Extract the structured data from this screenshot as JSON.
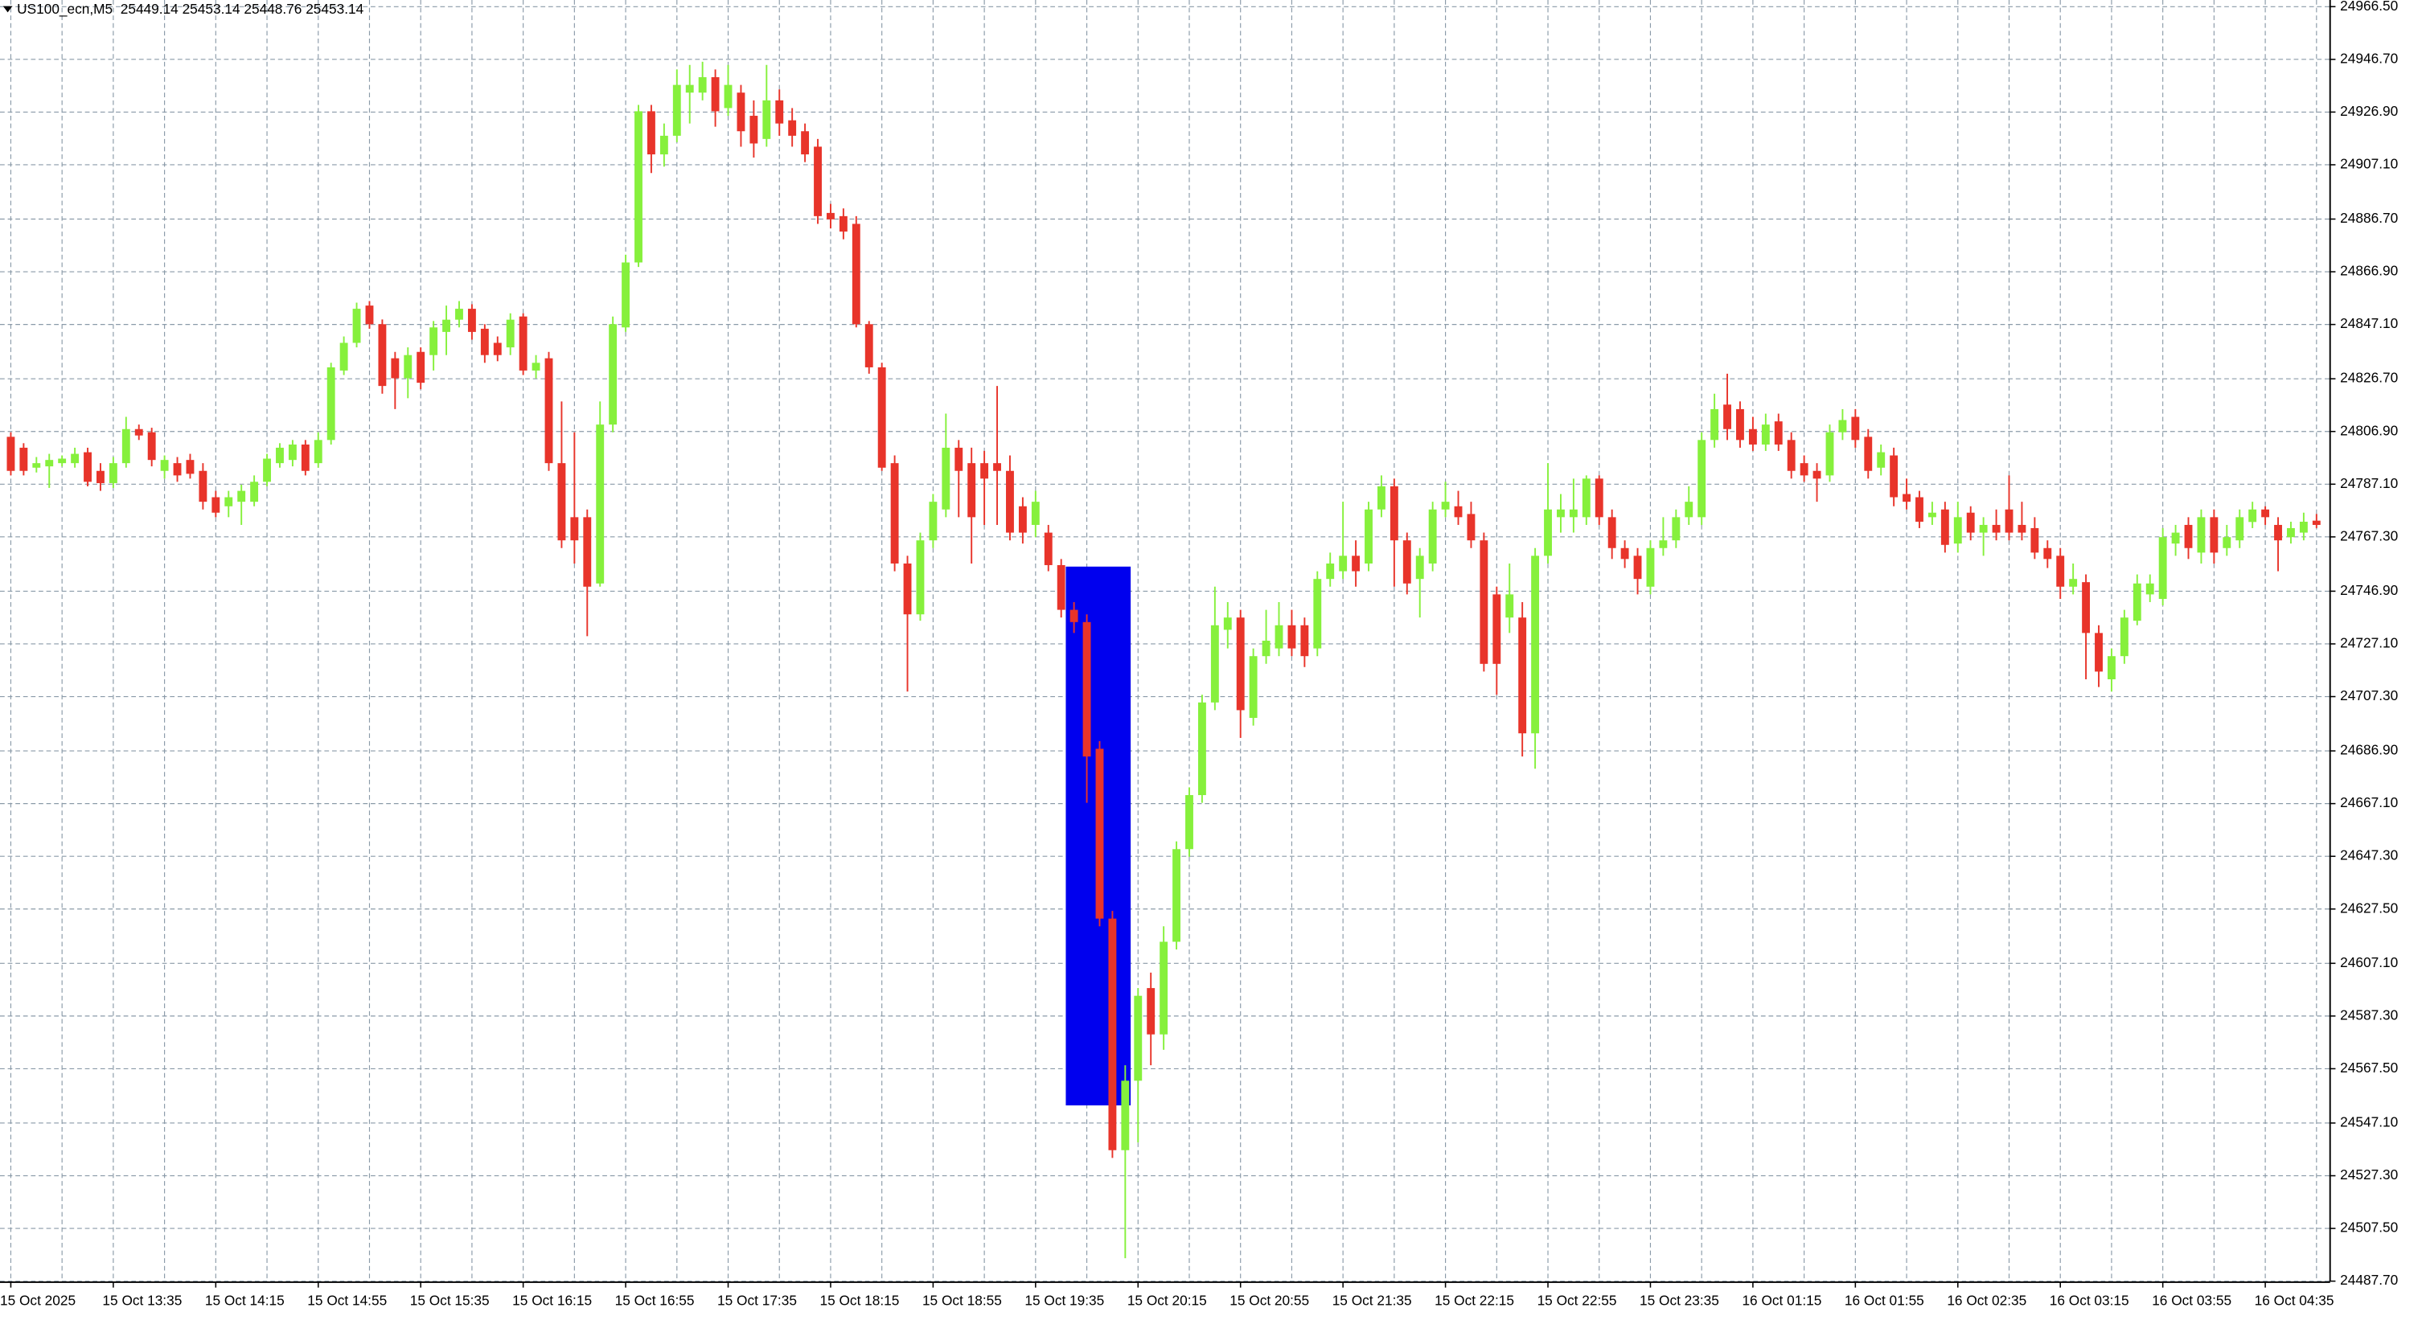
{
  "chart_data": {
    "type": "candlestick",
    "title": "US100_ecn,M5  25449.14 25453.14 25448.76 25453.14",
    "up_color": "#86f03c",
    "down_color": "#e8342a",
    "grid": true,
    "ylim": [
      24487.6,
      24969.0
    ],
    "yticks": [
      {
        "value": 24966.5,
        "label": "24966.50"
      },
      {
        "value": 24946.7,
        "label": "24946.70"
      },
      {
        "value": 24926.9,
        "label": "24926.90"
      },
      {
        "value": 24907.1,
        "label": "24907.10"
      },
      {
        "value": 24886.7,
        "label": "24886.70"
      },
      {
        "value": 24866.9,
        "label": "24866.90"
      },
      {
        "value": 24847.1,
        "label": "24847.10"
      },
      {
        "value": 24826.7,
        "label": "24826.70"
      },
      {
        "value": 24806.9,
        "label": "24806.90"
      },
      {
        "value": 24787.1,
        "label": "24787.10"
      },
      {
        "value": 24767.3,
        "label": "24767.30"
      },
      {
        "value": 24746.9,
        "label": "24746.90"
      },
      {
        "value": 24727.1,
        "label": "24727.10"
      },
      {
        "value": 24707.3,
        "label": "24707.30"
      },
      {
        "value": 24686.9,
        "label": "24686.90"
      },
      {
        "value": 24667.1,
        "label": "24667.10"
      },
      {
        "value": 24647.3,
        "label": "24647.30"
      },
      {
        "value": 24627.5,
        "label": "24627.50"
      },
      {
        "value": 24607.1,
        "label": "24607.10"
      },
      {
        "value": 24587.3,
        "label": "24587.30"
      },
      {
        "value": 24567.5,
        "label": "24567.50"
      },
      {
        "value": 24547.1,
        "label": "24547.10"
      },
      {
        "value": 24527.3,
        "label": "24527.30"
      },
      {
        "value": 24507.5,
        "label": "24507.50"
      },
      {
        "value": 24487.7,
        "label": "24487.70"
      }
    ],
    "categories": [
      "15 Oct 2025",
      null,
      null,
      null,
      null,
      null,
      null,
      null,
      "15 Oct 13:35",
      null,
      null,
      null,
      null,
      null,
      null,
      null,
      "15 Oct 14:15",
      null,
      null,
      null,
      null,
      null,
      null,
      null,
      "15 Oct 14:55",
      null,
      null,
      null,
      null,
      null,
      null,
      null,
      "15 Oct 15:35",
      null,
      null,
      null,
      null,
      null,
      null,
      null,
      "15 Oct 16:15",
      null,
      null,
      null,
      null,
      null,
      null,
      null,
      "15 Oct 16:55",
      null,
      null,
      null,
      null,
      null,
      null,
      null,
      "15 Oct 17:35",
      null,
      null,
      null,
      null,
      null,
      null,
      null,
      "15 Oct 18:15",
      null,
      null,
      null,
      null,
      null,
      null,
      null,
      "15 Oct 18:55",
      null,
      null,
      null,
      null,
      null,
      null,
      null,
      "15 Oct 19:35",
      null,
      null,
      null,
      null,
      null,
      null,
      null,
      "15 Oct 20:15",
      null,
      null,
      null,
      null,
      null,
      null,
      null,
      "15 Oct 20:55",
      null,
      null,
      null,
      null,
      null,
      null,
      null,
      "15 Oct 21:35",
      null,
      null,
      null,
      null,
      null,
      null,
      null,
      "15 Oct 22:15",
      null,
      null,
      null,
      null,
      null,
      null,
      null,
      "15 Oct 22:55",
      null,
      null,
      null,
      null,
      null,
      null,
      null,
      "15 Oct 23:35",
      null,
      null,
      null,
      null,
      null,
      null,
      null,
      "16 Oct 01:15",
      null,
      null,
      null,
      null,
      null,
      null,
      null,
      "16 Oct 01:55",
      null,
      null,
      null,
      null,
      null,
      null,
      null,
      "16 Oct 02:35",
      null,
      null,
      null,
      null,
      null,
      null,
      null,
      "16 Oct 03:15",
      null,
      null,
      null,
      null,
      null,
      null,
      null,
      "16 Oct 03:55",
      null,
      null,
      null,
      null,
      null,
      null,
      null,
      "16 Oct 04:35",
      null,
      null,
      null,
      null
    ],
    "open": [
      24804.9,
      24800.8,
      24793.3,
      24793.8,
      24795.0,
      24795.0,
      24799.1,
      24792.1,
      24787.5,
      24795.0,
      24807.8,
      24806.6,
      24792.1,
      24795.0,
      24796.2,
      24792.1,
      24782.2,
      24778.8,
      24780.5,
      24780.5,
      24788.0,
      24795.0,
      24796.2,
      24802.0,
      24795.0,
      24803.7,
      24829.8,
      24840.2,
      24854.2,
      24847.2,
      24834.4,
      24826.9,
      24836.8,
      24835.6,
      24844.3,
      24848.9,
      24853.0,
      24845.5,
      24840.2,
      24838.5,
      24850.1,
      24829.8,
      24834.4,
      24795.0,
      24774.7,
      24774.7,
      24749.8,
      24809.5,
      24846.0,
      24870.4,
      24927.2,
      24911.0,
      24918.0,
      24934.2,
      24934.2,
      24940.0,
      24928.4,
      24934.2,
      24925.5,
      24916.8,
      24931.3,
      24923.8,
      24919.7,
      24913.9,
      24889.0,
      24887.8,
      24884.9,
      24847.2,
      24831.0,
      24795.0,
      24757.3,
      24738.2,
      24766.0,
      24777.6,
      24800.8,
      24795.0,
      24795.0,
      24795.0,
      24792.1,
      24778.8,
      24771.8,
      24768.9,
      24756.7,
      24739.9,
      24735.3,
      24687.7,
      24623.9,
      24536.9,
      24563.0,
      24597.8,
      24580.4,
      24615.2,
      24650.0,
      24670.3,
      24705.1,
      24732.4,
      24737.0,
      24699.3,
      24722.5,
      24725.4,
      24734.1,
      24734.1,
      24725.4,
      24751.5,
      24754.4,
      24760.2,
      24757.3,
      24777.6,
      24786.3,
      24766.0,
      24751.5,
      24757.3,
      24777.6,
      24778.8,
      24775.9,
      24766.0,
      24745.7,
      24737.0,
      24737.0,
      24693.5,
      24760.2,
      24774.7,
      24774.7,
      24774.7,
      24789.2,
      24774.7,
      24763.1,
      24760.2,
      24748.6,
      24763.1,
      24766.0,
      24774.7,
      24774.7,
      24803.7,
      24817.0,
      24815.3,
      24807.8,
      24802.0,
      24810.7,
      24803.7,
      24795.0,
      24792.1,
      24790.4,
      24806.6,
      24812.4,
      24804.9,
      24793.3,
      24797.9,
      24783.4,
      24782.2,
      24774.7,
      24777.6,
      24764.8,
      24776.4,
      24768.9,
      24771.8,
      24777.6,
      24771.8,
      24770.6,
      24763.1,
      24760.2,
      24748.6,
      24750.3,
      24731.2,
      24713.8,
      24722.5,
      24735.8,
      24745.7,
      24744.0,
      24764.8,
      24771.8,
      24761.4,
      24774.7,
      24763.1,
      24766.0,
      24772.9,
      24777.6,
      24771.8,
      24767.2,
      24768.9,
      24773.4
    ],
    "high": [
      24806.6,
      24802.5,
      24797.3,
      24798.5,
      24797.9,
      24800.8,
      24800.8,
      24795.0,
      24797.3,
      24812.4,
      24809.5,
      24808.3,
      24797.9,
      24797.3,
      24798.5,
      24795.0,
      24784.6,
      24784.6,
      24786.9,
      24790.4,
      24798.5,
      24802.5,
      24803.7,
      24803.7,
      24806.6,
      24832.7,
      24842.6,
      24855.3,
      24855.9,
      24849.0,
      24836.8,
      24838.5,
      24838.5,
      24848.4,
      24854.2,
      24855.9,
      24854.7,
      24847.2,
      24842.6,
      24851.3,
      24851.3,
      24835.6,
      24836.8,
      24818.2,
      24806.6,
      24777.6,
      24818.2,
      24850.1,
      24873.3,
      24929.6,
      24929.6,
      24922.6,
      24942.9,
      24944.6,
      24945.8,
      24942.9,
      24944.6,
      24937.1,
      24931.3,
      24944.6,
      24935.4,
      24928.4,
      24922.6,
      24916.8,
      24892.4,
      24890.7,
      24887.8,
      24848.4,
      24832.7,
      24797.9,
      24760.2,
      24768.9,
      24783.4,
      24813.6,
      24803.7,
      24800.8,
      24799.6,
      24824.0,
      24797.9,
      24782.2,
      24784.6,
      24771.8,
      24759.0,
      24742.8,
      24738.2,
      24690.6,
      24626.8,
      24568.8,
      24597.8,
      24603.6,
      24621.0,
      24652.9,
      24673.2,
      24708.0,
      24748.6,
      24742.8,
      24739.9,
      24725.4,
      24739.9,
      24742.8,
      24739.9,
      24737.0,
      24754.4,
      24761.4,
      24780.5,
      24766.0,
      24780.5,
      24790.4,
      24789.2,
      24768.9,
      24763.1,
      24780.5,
      24788.0,
      24784.6,
      24780.5,
      24768.9,
      24748.6,
      24757.3,
      24742.8,
      24763.1,
      24795.0,
      24783.4,
      24789.2,
      24790.4,
      24790.4,
      24777.6,
      24766.0,
      24763.1,
      24766.0,
      24774.7,
      24777.6,
      24786.3,
      24806.6,
      24821.1,
      24828.6,
      24818.2,
      24812.4,
      24813.6,
      24813.6,
      24806.6,
      24797.9,
      24795.0,
      24809.5,
      24815.3,
      24815.3,
      24807.8,
      24802.0,
      24800.8,
      24789.2,
      24784.6,
      24780.5,
      24780.5,
      24780.5,
      24778.8,
      24774.7,
      24777.6,
      24790.4,
      24780.5,
      24774.7,
      24766.0,
      24763.1,
      24757.3,
      24753.2,
      24734.1,
      24725.4,
      24739.9,
      24753.2,
      24753.2,
      24770.6,
      24771.8,
      24774.7,
      24777.6,
      24777.6,
      24771.8,
      24777.6,
      24780.5,
      24778.8,
      24774.7,
      24773.0,
      24776.4,
      24775.9
    ],
    "low": [
      24790.4,
      24790.4,
      24791.5,
      24785.7,
      24793.8,
      24793.3,
      24786.3,
      24784.6,
      24785.7,
      24793.3,
      24803.7,
      24793.8,
      24789.2,
      24788.0,
      24789.2,
      24777.6,
      24774.7,
      24774.7,
      24771.8,
      24778.8,
      24786.3,
      24793.3,
      24793.8,
      24790.4,
      24793.3,
      24802.0,
      24828.1,
      24838.5,
      24845.5,
      24821.1,
      24815.3,
      24819.4,
      24822.8,
      24829.8,
      24835.6,
      24846.0,
      24841.4,
      24832.7,
      24833.3,
      24835.6,
      24828.1,
      24826.9,
      24792.1,
      24763.1,
      24757.3,
      24730.0,
      24748.6,
      24806.6,
      24844.3,
      24868.7,
      24904.0,
      24906.4,
      24915.6,
      24922.6,
      24931.3,
      24921.4,
      24925.5,
      24913.9,
      24909.8,
      24913.9,
      24918.0,
      24913.9,
      24908.1,
      24884.9,
      24883.2,
      24879.1,
      24846.0,
      24828.6,
      24792.1,
      24754.4,
      24709.2,
      24735.8,
      24763.1,
      24774.7,
      24774.7,
      24757.3,
      24771.8,
      24771.8,
      24766.0,
      24764.8,
      24767.2,
      24754.4,
      24737.0,
      24731.2,
      24667.4,
      24621.0,
      24534.0,
      24496.3,
      24539.8,
      24568.8,
      24574.6,
      24612.3,
      24647.1,
      24667.4,
      24702.2,
      24725.4,
      24691.8,
      24696.4,
      24719.6,
      24722.5,
      24722.5,
      24718.4,
      24722.5,
      24748.6,
      24751.5,
      24748.6,
      24754.4,
      24774.7,
      24748.6,
      24745.7,
      24737.0,
      24754.4,
      24774.7,
      24771.8,
      24763.1,
      24716.7,
      24708.0,
      24731.2,
      24684.8,
      24680.2,
      24757.3,
      24768.9,
      24768.9,
      24771.8,
      24771.8,
      24759.0,
      24755.6,
      24745.7,
      24745.7,
      24760.2,
      24763.1,
      24771.8,
      24771.8,
      24800.8,
      24803.7,
      24800.8,
      24799.6,
      24799.6,
      24799.6,
      24789.2,
      24788.0,
      24780.5,
      24788.0,
      24803.7,
      24800.8,
      24789.2,
      24790.4,
      24778.8,
      24777.6,
      24770.6,
      24771.8,
      24761.4,
      24761.4,
      24766.0,
      24760.2,
      24766.0,
      24766.0,
      24766.0,
      24759.0,
      24755.6,
      24744.0,
      24745.7,
      24713.8,
      24710.9,
      24709.2,
      24719.6,
      24734.1,
      24742.8,
      24741.6,
      24760.2,
      24759.0,
      24757.3,
      24757.3,
      24760.2,
      24763.1,
      24770.6,
      24771.8,
      24754.4,
      24764.8,
      24766.0,
      24770.6
    ],
    "close": [
      24792.1,
      24792.1,
      24795.0,
      24796.2,
      24796.7,
      24798.5,
      24788.0,
      24787.5,
      24795.0,
      24807.8,
      24805.4,
      24796.2,
      24796.2,
      24790.4,
      24791.0,
      24780.5,
      24776.4,
      24782.2,
      24784.6,
      24788.0,
      24796.7,
      24800.8,
      24802.0,
      24792.1,
      24803.7,
      24831.0,
      24840.2,
      24853.0,
      24847.2,
      24824.0,
      24826.9,
      24835.6,
      24825.2,
      24846.0,
      24848.9,
      24853.0,
      24844.3,
      24835.6,
      24835.6,
      24848.9,
      24829.8,
      24832.7,
      24795.0,
      24766.0,
      24766.0,
      24748.6,
      24809.5,
      24847.2,
      24870.4,
      24927.2,
      24911.0,
      24918.0,
      24937.1,
      24937.1,
      24940.0,
      24927.2,
      24937.1,
      24919.7,
      24915.1,
      24931.3,
      24922.6,
      24918.0,
      24911.0,
      24887.8,
      24886.6,
      24882.0,
      24847.2,
      24831.0,
      24793.3,
      24757.3,
      24738.2,
      24766.0,
      24780.5,
      24800.8,
      24792.1,
      24774.7,
      24789.2,
      24792.1,
      24768.9,
      24768.9,
      24780.5,
      24756.7,
      24739.9,
      24735.3,
      24684.8,
      24623.9,
      24536.9,
      24563.0,
      24594.9,
      24580.4,
      24615.2,
      24650.0,
      24670.3,
      24705.1,
      24734.1,
      24737.0,
      24702.2,
      24722.5,
      24728.3,
      24734.1,
      24725.4,
      24722.5,
      24751.5,
      24757.3,
      24760.2,
      24754.4,
      24777.6,
      24786.3,
      24766.0,
      24749.8,
      24760.2,
      24777.6,
      24780.5,
      24774.7,
      24766.0,
      24719.6,
      24719.6,
      24745.7,
      24693.5,
      24760.2,
      24777.6,
      24777.6,
      24777.6,
      24789.2,
      24774.7,
      24763.1,
      24759.0,
      24751.5,
      24763.1,
      24766.0,
      24774.7,
      24780.5,
      24803.7,
      24815.3,
      24807.8,
      24803.7,
      24802.0,
      24809.5,
      24802.0,
      24792.1,
      24790.4,
      24789.2,
      24806.6,
      24811.2,
      24803.7,
      24792.1,
      24799.1,
      24782.2,
      24780.5,
      24773.0,
      24776.4,
      24764.3,
      24774.7,
      24768.9,
      24771.8,
      24768.9,
      24768.9,
      24768.9,
      24761.4,
      24759.0,
      24748.6,
      24751.5,
      24731.2,
      24716.7,
      24722.5,
      24737.0,
      24749.8,
      24749.8,
      24767.2,
      24768.9,
      24763.1,
      24774.7,
      24761.4,
      24767.2,
      24774.7,
      24777.6,
      24774.7,
      24766.0,
      24770.6,
      24773.0,
      24771.8
    ]
  }
}
